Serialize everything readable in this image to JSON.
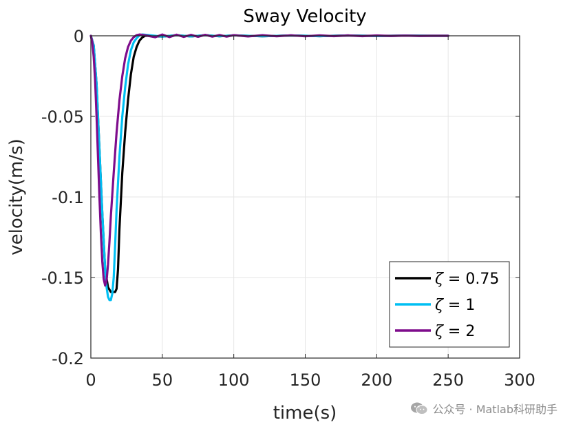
{
  "chart_data": {
    "type": "line",
    "title": "Sway Velocity",
    "xlabel": "time(s)",
    "ylabel": "velocity(m/s)",
    "xlim": [
      0,
      300
    ],
    "ylim": [
      -0.2,
      0
    ],
    "xticks": [
      0,
      50,
      100,
      150,
      200,
      250,
      300
    ],
    "yticks": [
      0,
      -0.05,
      -0.1,
      -0.15,
      -0.2
    ],
    "xtick_labels": [
      "0",
      "50",
      "100",
      "150",
      "200",
      "250",
      "300"
    ],
    "ytick_labels": [
      "0",
      "-0.05",
      "-0.1",
      "-0.15",
      "-0.2"
    ],
    "grid": true,
    "legend_position": "bottom-right",
    "series": [
      {
        "name": "ζ = 0.75",
        "symbol": "ζ",
        "label_rest": " = 0.75",
        "color": "#000000",
        "x": [
          0,
          2,
          4,
          6,
          8,
          10,
          12,
          14,
          15,
          16,
          17,
          18,
          19,
          20,
          22,
          24,
          26,
          28,
          30,
          32,
          34,
          36,
          38,
          40,
          50,
          60,
          70,
          80,
          90,
          100,
          120,
          140,
          160,
          180,
          200,
          220,
          240,
          250
        ],
        "y": [
          0,
          -0.006,
          -0.03,
          -0.07,
          -0.11,
          -0.145,
          -0.156,
          -0.159,
          -0.159,
          -0.159,
          -0.159,
          -0.157,
          -0.145,
          -0.12,
          -0.085,
          -0.06,
          -0.04,
          -0.024,
          -0.013,
          -0.007,
          -0.003,
          -0.001,
          0,
          0,
          -0.0005,
          0.0004,
          -0.0004,
          0.0004,
          -0.0003,
          0.0003,
          -0.0003,
          0.0002,
          -0.0002,
          0.0002,
          -0.0001,
          0.0001,
          0,
          0
        ]
      },
      {
        "name": "ζ = 1",
        "symbol": "ζ",
        "label_rest": " = 1",
        "color": "#00BFF3",
        "x": [
          0,
          2,
          4,
          6,
          8,
          10,
          11,
          12,
          13,
          14,
          15,
          16,
          17,
          18,
          20,
          22,
          24,
          26,
          28,
          30,
          32,
          34,
          36,
          40,
          50,
          60,
          70,
          80,
          90,
          100,
          120,
          140,
          160,
          180,
          200,
          220,
          240,
          250
        ],
        "y": [
          0,
          -0.006,
          -0.03,
          -0.07,
          -0.11,
          -0.145,
          -0.156,
          -0.162,
          -0.164,
          -0.164,
          -0.16,
          -0.15,
          -0.13,
          -0.108,
          -0.075,
          -0.05,
          -0.032,
          -0.018,
          -0.009,
          -0.004,
          -0.0015,
          0.0003,
          0.0008,
          0.0005,
          -0.0005,
          0.0004,
          -0.0004,
          0.0004,
          -0.0003,
          0.0003,
          -0.0003,
          0.0002,
          -0.0002,
          0.0002,
          -0.0001,
          0.0001,
          0,
          0
        ]
      },
      {
        "name": "ζ = 2",
        "symbol": "ζ",
        "label_rest": " = 2",
        "color": "#7E0C8C",
        "x": [
          0,
          1,
          2,
          3,
          4,
          5,
          6,
          7,
          8,
          9,
          10,
          11,
          12,
          13,
          14,
          16,
          18,
          20,
          22,
          24,
          26,
          28,
          30,
          32,
          34,
          36,
          40,
          45,
          50,
          55,
          60,
          65,
          70,
          75,
          80,
          85,
          90,
          95,
          100,
          110,
          120,
          130,
          140,
          150,
          160,
          170,
          180,
          190,
          200,
          210,
          220,
          230,
          240,
          250
        ],
        "y": [
          0,
          -0.004,
          -0.013,
          -0.028,
          -0.05,
          -0.075,
          -0.1,
          -0.122,
          -0.14,
          -0.151,
          -0.155,
          -0.152,
          -0.142,
          -0.128,
          -0.112,
          -0.085,
          -0.06,
          -0.04,
          -0.025,
          -0.014,
          -0.007,
          -0.003,
          -0.0008,
          0.0004,
          0.0008,
          0.0006,
          0,
          -0.0009,
          0.0008,
          -0.0008,
          0.0007,
          -0.0007,
          0.0006,
          -0.0006,
          0.0006,
          -0.0005,
          0.0005,
          -0.0005,
          0.0004,
          -0.0004,
          0.0004,
          -0.0003,
          0.0003,
          -0.0003,
          0.0003,
          -0.0002,
          0.0002,
          -0.0002,
          0.0002,
          -0.0001,
          0.0001,
          -0.0001,
          0,
          0
        ]
      }
    ]
  },
  "watermark": {
    "icon": "wechat-icon",
    "text": "公众号 · Matlab科研助手"
  }
}
